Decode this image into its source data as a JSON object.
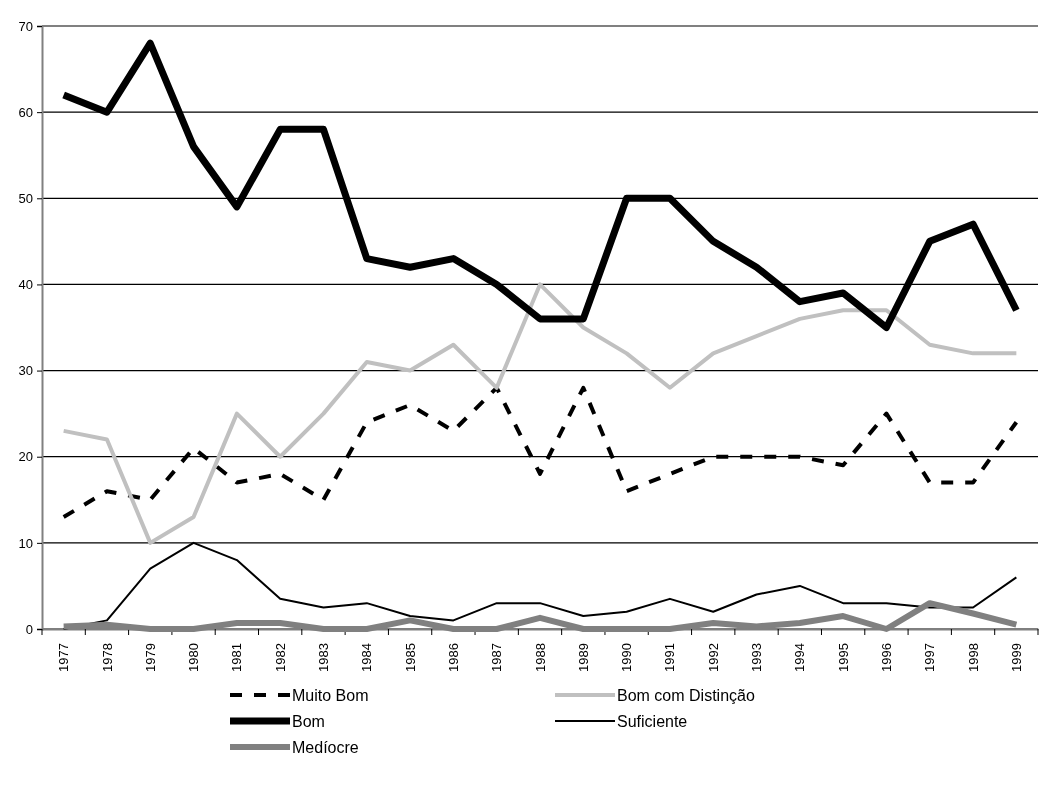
{
  "chart_data": {
    "type": "line",
    "categories": [
      "1977",
      "1978",
      "1979",
      "1980",
      "1981",
      "1982",
      "1983",
      "1984",
      "1985",
      "1986",
      "1987",
      "1988",
      "1989",
      "1990",
      "1991",
      "1992",
      "1993",
      "1994",
      "1995",
      "1996",
      "1997",
      "1998",
      "1999"
    ],
    "ylim": [
      0,
      70
    ],
    "yticks": [
      0,
      10,
      20,
      30,
      40,
      50,
      60,
      70
    ],
    "grid": "y",
    "legend": "bottom",
    "marker": "none",
    "series": [
      {
        "name": "Muito Bom",
        "color": "#000000",
        "line_style": "dashed",
        "values": [
          13,
          16,
          15,
          21,
          17,
          18,
          15,
          24,
          26,
          23,
          28,
          18,
          28,
          16,
          18,
          20,
          20,
          20,
          19,
          25,
          17,
          17,
          24
        ]
      },
      {
        "name": "Bom com Distinção",
        "color": "#c0c0c0",
        "line_style": "solid",
        "values": [
          23,
          22,
          10,
          13,
          25,
          20,
          25,
          31,
          30,
          33,
          28,
          40,
          35,
          32,
          28,
          32,
          34,
          36,
          37,
          37,
          33,
          32,
          32
        ]
      },
      {
        "name": "Bom",
        "color": "#000000",
        "line_style": "solid",
        "values": [
          62,
          60,
          68,
          56,
          49,
          58,
          58,
          43,
          42,
          43,
          40,
          36,
          36,
          50,
          50,
          45,
          42,
          38,
          39,
          35,
          45,
          47,
          37
        ]
      },
      {
        "name": "Suficiente",
        "color": "#000000",
        "line_style": "solid",
        "values": [
          0,
          1,
          7,
          10,
          8,
          3.5,
          2.5,
          3,
          1.5,
          1,
          3,
          3,
          1.5,
          2,
          3.5,
          2,
          4,
          5,
          3,
          3,
          2.5,
          2.5,
          6
        ]
      },
      {
        "name": "Medíocre",
        "color": "#808080",
        "line_style": "solid",
        "values": [
          0.3,
          0.5,
          0,
          0,
          0.7,
          0.7,
          0,
          0,
          1,
          0,
          0,
          1.3,
          0,
          0,
          0,
          0.7,
          0.3,
          0.7,
          1.5,
          0,
          3,
          1.8,
          0.5
        ]
      }
    ]
  }
}
